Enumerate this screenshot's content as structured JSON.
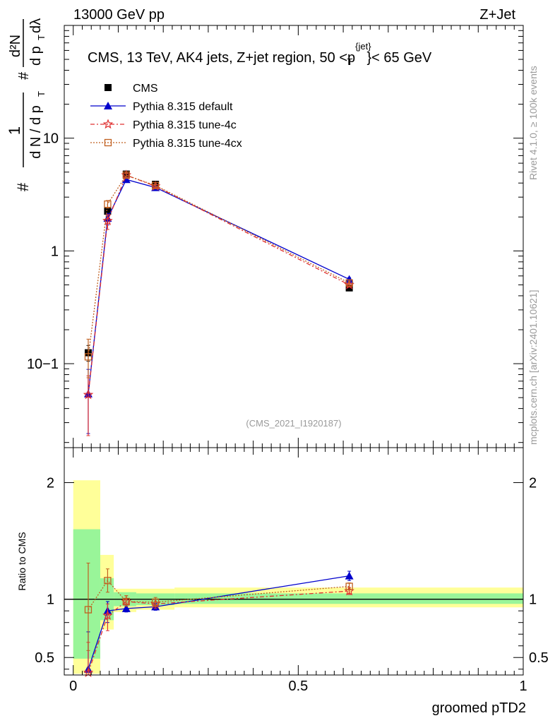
{
  "header": {
    "left": "13000 GeV pp",
    "right": "Z+Jet"
  },
  "side_labels": {
    "rivet": "Rivet 4.1.0, ≥ 100k events",
    "source": "mcplots.cern.ch [arXiv:2401.10621]"
  },
  "colors": {
    "cms": "#000000",
    "default": "#0000cc",
    "tune4c": "#e03030",
    "tune4cx": "#c06020",
    "band_inner": "#99f599",
    "band_outer": "#ffff99"
  },
  "chart_data": [
    {
      "type": "scatter",
      "panel": "main",
      "title": "CMS, 13 TeV, AK4 jets, Z+jet region, 50 <p_T^{jet}< 65 GeV",
      "title_parts": {
        "prefix": "CMS, 13 TeV, AK4 jets, Z+jet region, 50 <p",
        "sup": "{jet}",
        "sub": "T",
        "suffix": "}< 65 GeV"
      },
      "ylabel": "1/(dN/dpT) d²N/(dpT dλ)",
      "ylabel_parts": {
        "frac_num": "1",
        "frac_den": "d N / d p",
        "sub_t": "T",
        "hash": "#",
        "d2n": "d²N",
        "dpt": "d p",
        "dlambda": "dλ"
      },
      "xlabel": "groomed pTD2",
      "yscale": "log",
      "ylim": [
        0.018,
        100
      ],
      "xlim": [
        -0.02,
        1.0
      ],
      "y_ticks": [
        {
          "v": 10,
          "label": "10"
        },
        {
          "v": 1,
          "label": "1"
        },
        {
          "v": 0.1,
          "label": "10−1"
        }
      ],
      "watermark": "(CMS_2021_I1920187)",
      "legend": [
        {
          "name": "CMS",
          "key": "cms"
        },
        {
          "name": "Pythia 8.315 default",
          "key": "default"
        },
        {
          "name": "Pythia 8.315 tune-4c",
          "key": "tune4c"
        },
        {
          "name": "Pythia 8.315 tune-4cx",
          "key": "tune4cx"
        }
      ],
      "x": [
        0.0333,
        0.0764,
        0.1178,
        0.1827,
        0.6134
      ],
      "series": [
        {
          "key": "cms",
          "values": [
            0.125,
            2.25,
            4.8,
            3.9,
            0.47
          ],
          "err_lo": [
            0.02,
            0.15,
            0.2,
            0.15,
            0.02
          ],
          "err_hi": [
            0.02,
            0.15,
            0.2,
            0.15,
            0.02
          ]
        },
        {
          "key": "default",
          "values": [
            0.054,
            1.95,
            4.3,
            3.65,
            0.56
          ],
          "err_lo": [
            0.03,
            0.25,
            0.15,
            0.1,
            0.02
          ],
          "err_hi": [
            0.035,
            0.2,
            0.15,
            0.1,
            0.02
          ]
        },
        {
          "key": "tune4c",
          "values": [
            0.053,
            1.85,
            4.7,
            3.75,
            0.5
          ],
          "err_lo": [
            0.03,
            0.3,
            0.2,
            0.12,
            0.02
          ],
          "err_hi": [
            0.025,
            0.25,
            0.2,
            0.12,
            0.02
          ]
        },
        {
          "key": "tune4cx",
          "values": [
            0.115,
            2.6,
            4.7,
            3.8,
            0.52
          ],
          "err_lo": [
            0.04,
            0.2,
            0.2,
            0.12,
            0.02
          ],
          "err_hi": [
            0.05,
            0.2,
            0.2,
            0.12,
            0.02
          ]
        }
      ]
    },
    {
      "type": "scatter",
      "panel": "ratio",
      "ylabel": "Ratio to CMS",
      "xlabel": "groomed pTD2",
      "ylim": [
        0.35,
        2.3
      ],
      "xlim": [
        -0.02,
        1.0
      ],
      "y_ticks": [
        {
          "v": 0.5,
          "label": "0.5"
        },
        {
          "v": 1,
          "label": "1"
        },
        {
          "v": 2,
          "label": "2"
        }
      ],
      "x_ticks": [
        {
          "v": 0,
          "label": "0"
        },
        {
          "v": 0.5,
          "label": "0.5"
        },
        {
          "v": 1,
          "label": "1"
        }
      ],
      "bands": [
        {
          "x0": 0.0,
          "x1": 0.06,
          "inner": [
            0.49,
            1.6
          ],
          "outer": [
            0.36,
            2.02
          ]
        },
        {
          "x0": 0.06,
          "x1": 0.09,
          "inner": [
            0.82,
            1.18
          ],
          "outer": [
            0.74,
            1.38
          ]
        },
        {
          "x0": 0.09,
          "x1": 0.14,
          "inner": [
            0.94,
            1.06
          ],
          "outer": [
            0.89,
            1.09
          ]
        },
        {
          "x0": 0.14,
          "x1": 0.225,
          "inner": [
            0.95,
            1.05
          ],
          "outer": [
            0.91,
            1.09
          ]
        },
        {
          "x0": 0.225,
          "x1": 1.0,
          "inner": [
            0.96,
            1.05
          ],
          "outer": [
            0.93,
            1.1
          ]
        }
      ],
      "x": [
        0.0333,
        0.0764,
        0.1178,
        0.1827,
        0.6134
      ],
      "series": [
        {
          "key": "default",
          "values": [
            0.4,
            0.9,
            0.92,
            0.935,
            1.2
          ],
          "err_lo": [
            0.1,
            0.1,
            0.03,
            0.03,
            0.04
          ],
          "err_hi": [
            0.32,
            0.08,
            0.03,
            0.03,
            0.04
          ]
        },
        {
          "key": "tune4c",
          "values": [
            0.37,
            0.86,
            0.98,
            0.96,
            1.07
          ],
          "err_lo": [
            0.1,
            0.13,
            0.04,
            0.04,
            0.03
          ],
          "err_hi": [
            0.26,
            0.1,
            0.05,
            0.04,
            0.03
          ]
        },
        {
          "key": "tune4cx",
          "values": [
            0.91,
            1.16,
            0.98,
            0.975,
            1.11
          ],
          "err_lo": [
            0.35,
            0.1,
            0.04,
            0.04,
            0.03
          ],
          "err_hi": [
            0.4,
            0.1,
            0.05,
            0.04,
            0.03
          ]
        }
      ]
    }
  ]
}
